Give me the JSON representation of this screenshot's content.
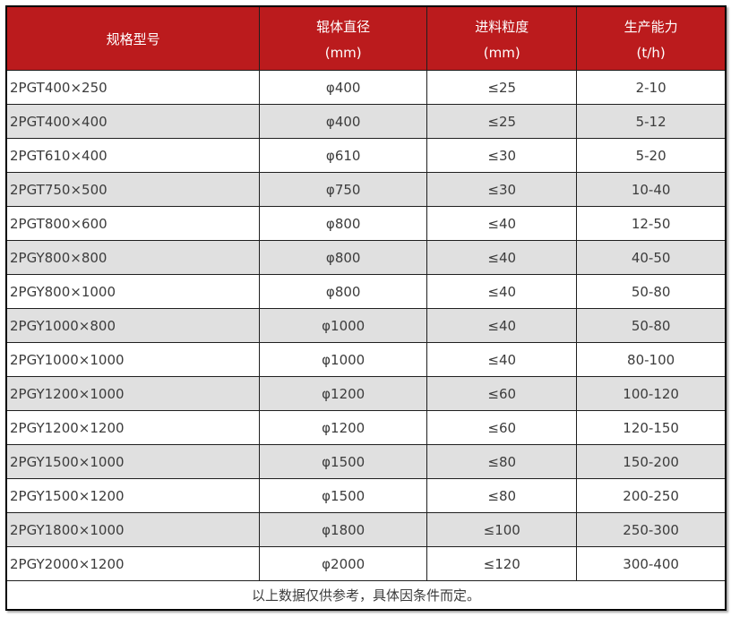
{
  "table": {
    "columns": [
      {
        "title": "规格型号",
        "unit": ""
      },
      {
        "title": "辊体直径",
        "unit": "(mm)"
      },
      {
        "title": "进料粒度",
        "unit": "(mm)"
      },
      {
        "title": "生产能力",
        "unit": "(t/h)"
      }
    ],
    "rows": [
      [
        "2PGT400×250",
        "φ400",
        "≤25",
        "2-10"
      ],
      [
        "2PGT400×400",
        "φ400",
        "≤25",
        "5-12"
      ],
      [
        "2PGT610×400",
        "φ610",
        "≤30",
        "5-20"
      ],
      [
        "2PGT750×500",
        "φ750",
        "≤30",
        "10-40"
      ],
      [
        "2PGT800×600",
        "φ800",
        "≤40",
        "12-50"
      ],
      [
        "2PGY800×800",
        "φ800",
        "≤40",
        "40-50"
      ],
      [
        "2PGY800×1000",
        "φ800",
        "≤40",
        "50-80"
      ],
      [
        "2PGY1000×800",
        "φ1000",
        "≤40",
        "50-80"
      ],
      [
        "2PGY1000×1000",
        "φ1000",
        "≤40",
        "80-100"
      ],
      [
        "2PGY1200×1000",
        "φ1200",
        "≤60",
        "100-120"
      ],
      [
        "2PGY1200×1200",
        "φ1200",
        "≤60",
        "120-150"
      ],
      [
        "2PGY1500×1000",
        "φ1500",
        "≤80",
        "150-200"
      ],
      [
        "2PGY1500×1200",
        "φ1500",
        "≤80",
        "200-250"
      ],
      [
        "2PGY1800×1000",
        "φ1800",
        "≤100",
        "250-300"
      ],
      [
        "2PGY2000×1200",
        "φ2000",
        "≤120",
        "300-400"
      ]
    ],
    "footer_note": "以上数据仅供参考，具体因条件而定。"
  },
  "colors": {
    "header_bg": "#bb1b1d",
    "header_text": "#ffffff",
    "row_alt_bg": "#e0e0e0",
    "row_bg": "#ffffff",
    "border": "#1f1f1f",
    "outer_border": "#000000",
    "cell_text": "#3c3c3c"
  }
}
